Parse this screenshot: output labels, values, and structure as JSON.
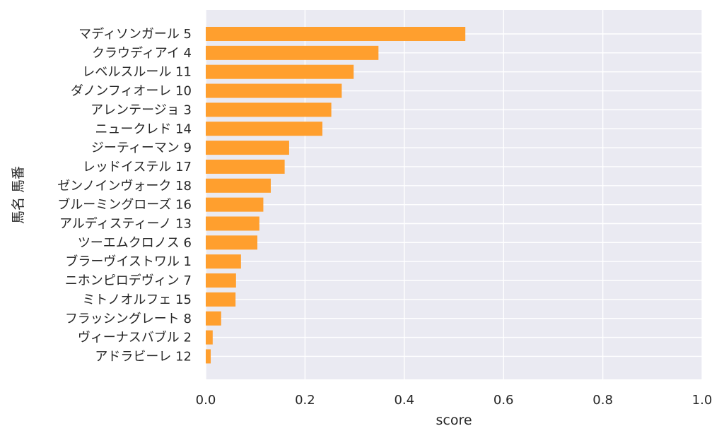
{
  "chart_data": {
    "type": "bar",
    "orientation": "horizontal",
    "xlabel": "score",
    "ylabel": "馬名 馬番",
    "xlim": [
      0.0,
      1.0
    ],
    "xticks": [
      "0.0",
      "0.2",
      "0.4",
      "0.6",
      "0.8",
      "1.0"
    ],
    "grid": true,
    "bar_color": "#ff9f2e",
    "plot_background": "#eaeaf2",
    "categories": [
      "マディソンガール 5",
      "クラウディアイ 4",
      "レベルスルール 11",
      "ダノンフィオーレ 10",
      "アレンテージョ 3",
      "ニュークレド 14",
      "ジーティーマン 9",
      "レッドイステル 17",
      "ゼンノインヴォーク 18",
      "ブルーミングローズ 16",
      "アルディスティーノ 13",
      "ツーエムクロノス 6",
      "ブラーヴイストワル 1",
      "ニホンピロデヴィン 7",
      "ミトノオルフェ 15",
      "フラッシングレート 8",
      "ヴィーナスバブル 2",
      "アドラビーレ 12"
    ],
    "values": [
      0.523,
      0.348,
      0.298,
      0.274,
      0.253,
      0.235,
      0.168,
      0.159,
      0.131,
      0.116,
      0.108,
      0.104,
      0.071,
      0.061,
      0.06,
      0.031,
      0.014,
      0.01
    ]
  }
}
